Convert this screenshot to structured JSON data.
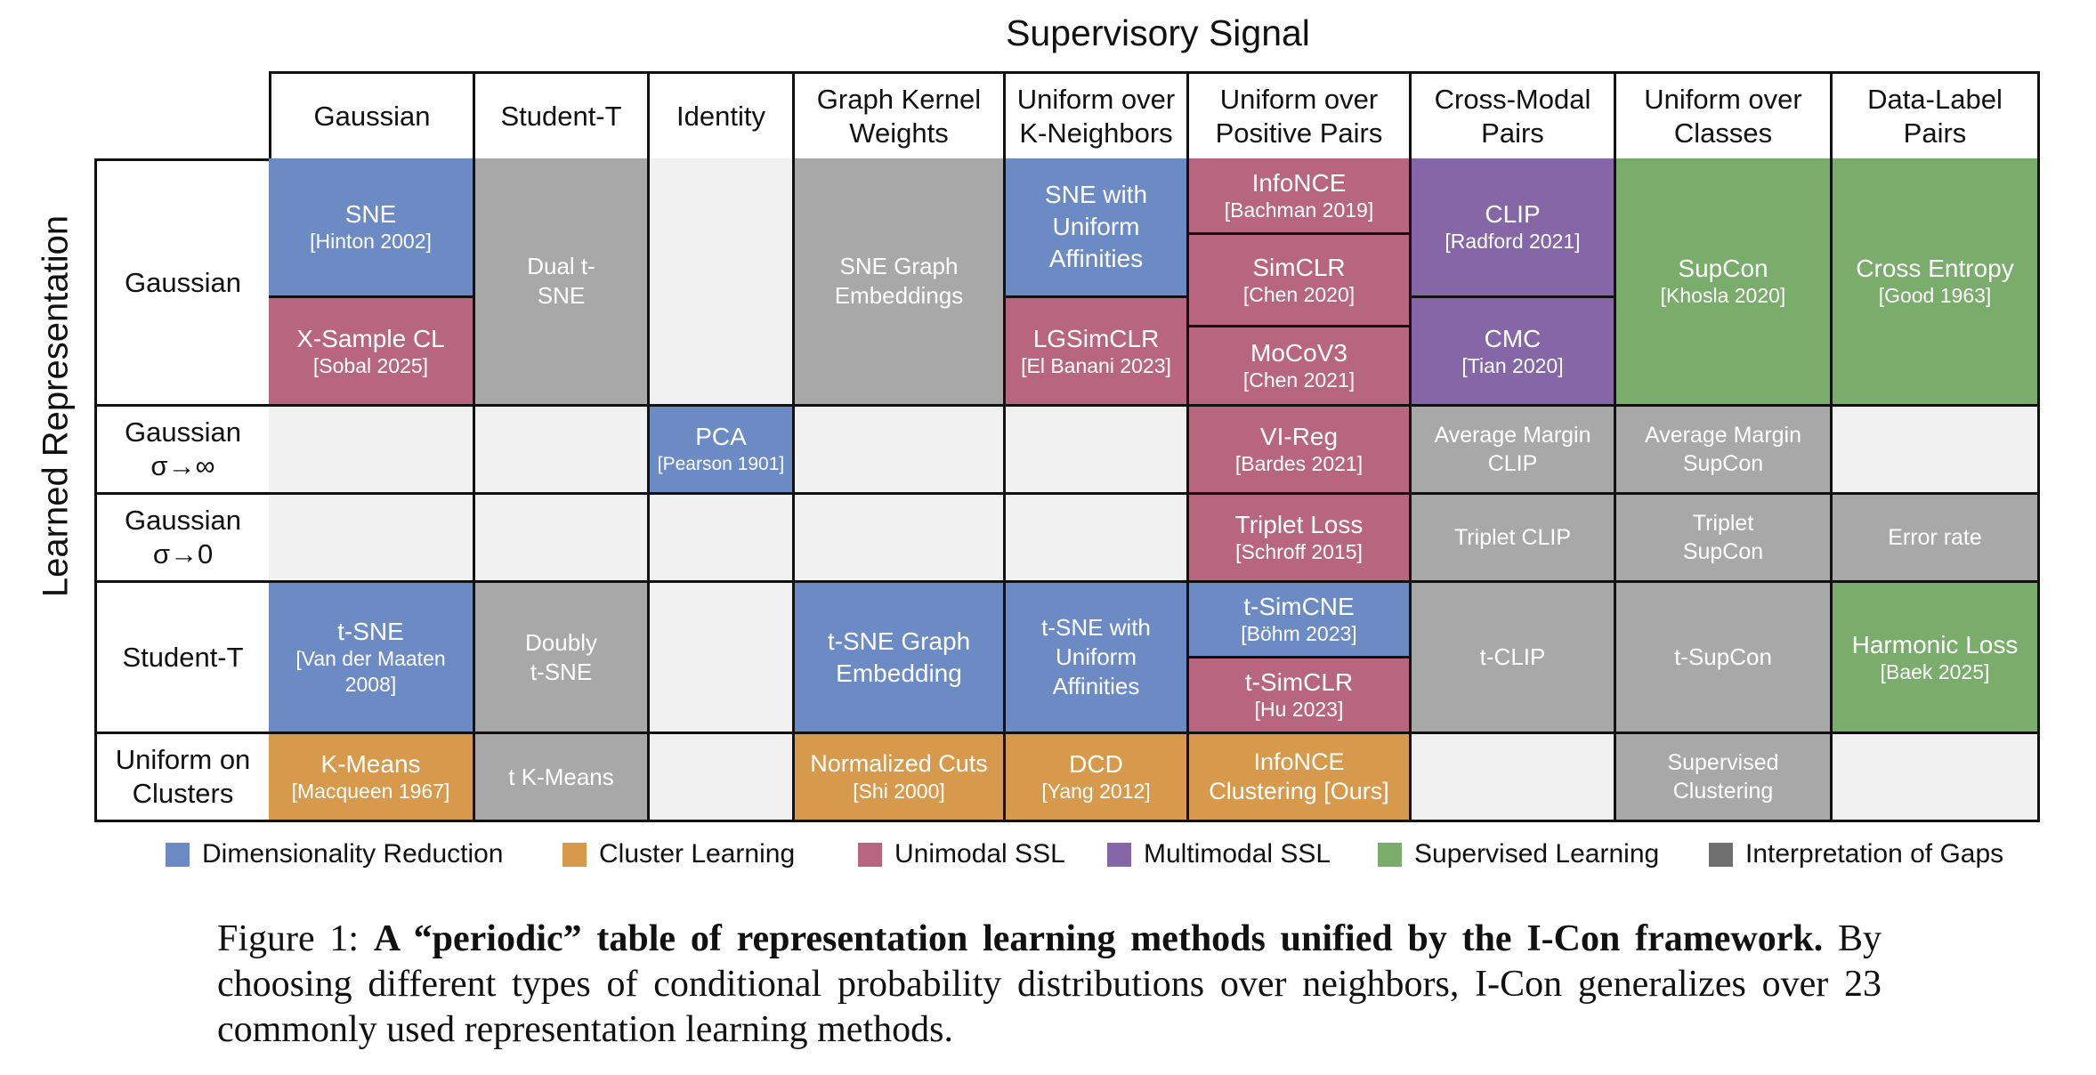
{
  "title_top": "Supervisory Signal",
  "title_left": "Learned Representation",
  "columns": {
    "gaussian": "Gaussian",
    "student_t": "Student-T",
    "identity": "Identity",
    "graph_kernel": "Graph Kernel Weights",
    "uniform_kneighbors": "Uniform over K-Neighbors",
    "uniform_positive_pairs": "Uniform over Positive Pairs",
    "cross_modal": "Cross-Modal Pairs",
    "uniform_classes": "Uniform over Classes",
    "data_label": "Data-Label Pairs"
  },
  "rows": {
    "gaussian": "Gaussian",
    "gaussian_inf": "Gaussian σ→∞",
    "gaussian_zero": "Gaussian σ→0",
    "student_t": "Student-T",
    "uniform_clusters": "Uniform on Clusters"
  },
  "cells": {
    "sne": {
      "title": "SNE",
      "cite": "[Hinton 2002]"
    },
    "xsample": {
      "title": "X-Sample CL",
      "cite": "[Sobal 2025]"
    },
    "dual_tsne": {
      "title": "Dual t-SNE"
    },
    "sne_graph": {
      "title": "SNE Graph Embeddings"
    },
    "sne_uniform": {
      "title": "SNE with Uniform Affinities"
    },
    "lgsimclr": {
      "title": "LGSimCLR",
      "cite": "[El Banani 2023]"
    },
    "infonce": {
      "title": "InfoNCE",
      "cite": "[Bachman 2019]"
    },
    "simclr": {
      "title": "SimCLR",
      "cite": "[Chen 2020]"
    },
    "mocov3": {
      "title": "MoCoV3",
      "cite": "[Chen 2021]"
    },
    "clip": {
      "title": "CLIP",
      "cite": "[Radford 2021]"
    },
    "cmc": {
      "title": "CMC",
      "cite": "[Tian 2020]"
    },
    "supcon": {
      "title": "SupCon",
      "cite": "[Khosla 2020]"
    },
    "cross_entropy": {
      "title": "Cross Entropy",
      "cite": "[Good 1963]"
    },
    "pca": {
      "title": "PCA",
      "cite": "[Pearson 1901]"
    },
    "vireg": {
      "title": "VI-Reg",
      "cite": "[Bardes 2021]"
    },
    "avg_margin_clip": {
      "title": "Average Margin CLIP"
    },
    "avg_margin_supcon": {
      "title": "Average Margin SupCon"
    },
    "triplet_loss": {
      "title": "Triplet Loss",
      "cite": "[Schroff 2015]"
    },
    "triplet_clip": {
      "title": "Triplet CLIP"
    },
    "triplet_supcon": {
      "title": "Triplet SupCon"
    },
    "error_rate": {
      "title": "Error rate"
    },
    "tsne": {
      "title": "t-SNE",
      "cite": "[Van der Maaten 2008]"
    },
    "doubly_tsne": {
      "title": "Doubly t-SNE"
    },
    "tsne_graph": {
      "title": "t-SNE Graph Embedding"
    },
    "tsne_uniform": {
      "title": "t-SNE with Uniform Affinities"
    },
    "tsimcne": {
      "title": "t-SimCNE",
      "cite": "[Böhm 2023]"
    },
    "tsimclr": {
      "title": "t-SimCLR",
      "cite": "[Hu 2023]"
    },
    "tclip": {
      "title": "t-CLIP"
    },
    "tsupcon": {
      "title": "t-SupCon"
    },
    "harmonic": {
      "title": "Harmonic Loss",
      "cite": "[Baek 2025]"
    },
    "kmeans": {
      "title": "K-Means",
      "cite": "[Macqueen 1967]"
    },
    "t_kmeans": {
      "title": "t K-Means"
    },
    "ncuts": {
      "title": "Normalized Cuts",
      "cite": "[Shi 2000]"
    },
    "dcd": {
      "title": "DCD",
      "cite": "[Yang 2012]"
    },
    "infonce_clustering": {
      "title": "InfoNCE Clustering [Ours]"
    },
    "supervised_clustering": {
      "title": "Supervised Clustering"
    }
  },
  "legend": [
    {
      "label": "Dimensionality Reduction",
      "color": "#6c8bc5"
    },
    {
      "label": "Cluster Learning",
      "color": "#d79a4c"
    },
    {
      "label": "Unimodal SSL",
      "color": "#b86680"
    },
    {
      "label": "Multimodal SSL",
      "color": "#8566a6"
    },
    {
      "label": "Supervised Learning",
      "color": "#7aad6c"
    },
    {
      "label": "Interpretation of Gaps",
      "color": "#707070"
    }
  ],
  "caption": {
    "label": "Figure 1:",
    "bold": "A “periodic” table of representation learning methods unified by the I-Con framework.",
    "text": "By choosing different types of conditional probability distributions over neighbors, I-Con generalizes over 23 commonly used representation learning methods."
  }
}
